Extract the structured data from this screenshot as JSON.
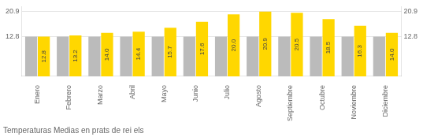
{
  "chart_data": {
    "type": "bar",
    "title": "Temperaturas Medias en prats de rei els",
    "categories": [
      "Enero",
      "Febrero",
      "Marzo",
      "Abril",
      "Mayo",
      "Junio",
      "Julio",
      "Agosto",
      "Septiembre",
      "Octubre",
      "Noviembre",
      "Diciembre"
    ],
    "series": [
      {
        "color": "#BBBBBB",
        "values": [
          12.8,
          12.8,
          12.8,
          12.8,
          12.8,
          12.8,
          12.8,
          12.8,
          12.8,
          12.8,
          12.8,
          12.8
        ]
      },
      {
        "color": "#FFD700",
        "values": [
          12.8,
          13.2,
          14.0,
          14.4,
          15.7,
          17.6,
          20.0,
          20.9,
          20.5,
          18.5,
          16.3,
          14.0
        ],
        "value_labels": [
          "12.8",
          "13.2",
          "14.0",
          "14.4",
          "15.7",
          "17.6",
          "20.0",
          "20.9",
          "20.5",
          "18.5",
          "16.3",
          "14.0"
        ],
        "data_labels": true
      }
    ],
    "ylim": [
      0,
      22.5
    ],
    "yticks": [
      12.8,
      20.9
    ],
    "grid": true
  }
}
